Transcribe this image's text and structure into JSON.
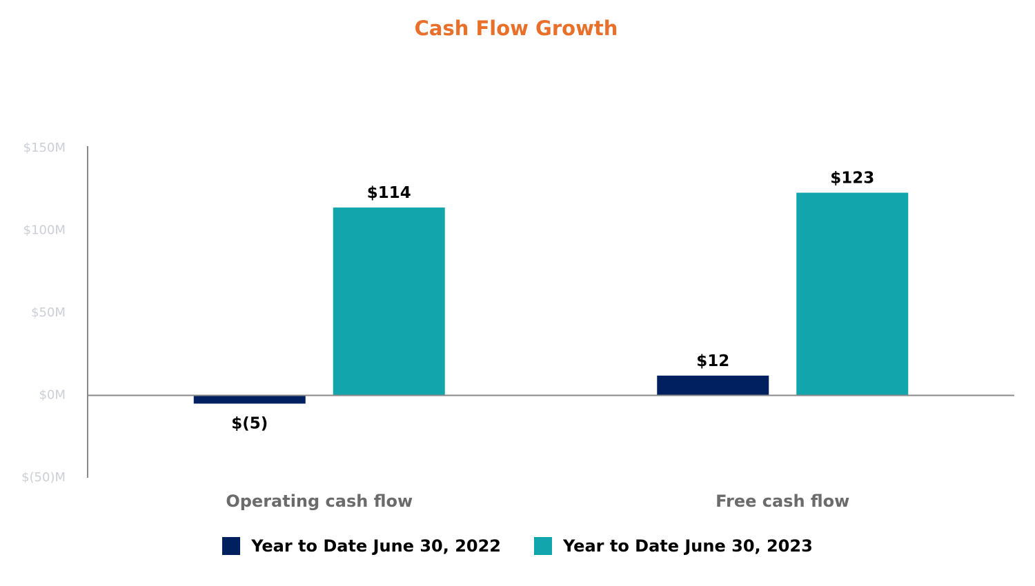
{
  "chart_data": {
    "type": "bar",
    "title": "Cash Flow Growth",
    "categories": [
      "Operating cash flow",
      "Free cash flow"
    ],
    "series": [
      {
        "name": "Year to Date June 30, 2022",
        "values": [
          -5,
          12
        ],
        "labels": [
          "$(5)",
          "$12"
        ],
        "color": "#002060"
      },
      {
        "name": "Year to Date June 30, 2023",
        "values": [
          114,
          123
        ],
        "labels": [
          "$114",
          "$123"
        ],
        "color": "#12a5ab"
      }
    ],
    "ylim": [
      -50,
      150
    ],
    "yticks": [
      150,
      100,
      50,
      0,
      -50
    ],
    "ytick_labels": [
      "$150M",
      "$100M",
      "$50M",
      "$0M",
      "$(50)M"
    ],
    "xlabel": "",
    "ylabel": "",
    "grid": false,
    "legend_position": "bottom-center"
  },
  "colors": {
    "title": "#e8702a",
    "axis": "#888888",
    "tick_text": "#cccfd6",
    "category_text": "#6b6b6b"
  }
}
